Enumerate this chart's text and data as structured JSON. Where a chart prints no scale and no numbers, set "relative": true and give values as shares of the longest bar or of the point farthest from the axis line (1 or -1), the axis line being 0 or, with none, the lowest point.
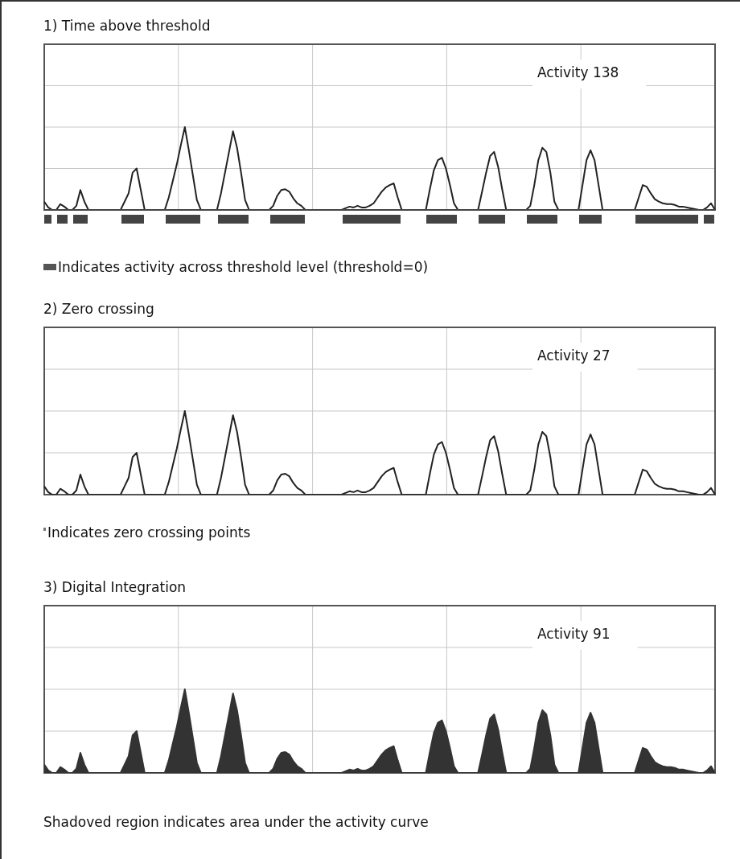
{
  "chart_data": [
    {
      "type": "line",
      "title": "1) Time above threshold",
      "relative": true,
      "grid": true,
      "marker": "none",
      "legend": false,
      "categories": [
        null,
        null,
        null,
        null,
        null,
        null,
        null,
        null,
        null,
        null,
        null,
        null,
        null,
        null,
        null,
        null,
        null,
        null,
        null,
        null,
        null,
        null,
        null,
        null,
        null,
        null,
        null,
        null,
        null,
        null,
        null,
        null,
        null,
        null,
        null,
        null,
        null,
        null,
        null,
        null,
        null,
        null,
        null,
        null,
        null,
        null,
        null,
        null,
        null,
        null,
        null,
        null,
        null,
        null,
        null,
        null,
        null,
        null,
        null,
        null,
        null,
        null,
        null,
        null,
        null,
        null,
        null,
        null,
        null,
        null,
        null,
        null,
        null,
        null,
        null,
        null,
        null,
        null,
        null,
        null,
        null,
        null,
        null,
        null,
        null,
        null,
        null,
        null,
        null,
        null,
        null,
        null,
        null,
        null,
        null,
        null,
        null,
        null,
        null,
        null,
        null,
        null,
        null,
        null,
        null,
        null,
        null,
        null,
        null,
        null,
        null,
        null,
        null,
        null,
        null,
        null,
        null,
        null,
        null,
        null,
        null,
        null,
        null,
        null,
        null,
        null,
        null,
        null,
        null,
        null,
        null,
        null,
        null,
        null,
        null,
        null,
        null,
        null,
        null,
        null,
        null,
        null,
        null,
        null,
        null,
        null,
        null,
        null,
        null,
        null,
        null,
        null,
        null,
        null,
        null,
        null,
        null,
        null,
        null,
        null,
        null,
        null,
        null,
        null,
        null,
        null,
        null,
        null
      ],
      "series": [
        {
          "color": "#222222",
          "values": [
            0.1,
            0.03,
            0,
            0,
            0.07,
            0.04,
            0,
            0,
            0.05,
            0.24,
            0.1,
            0,
            0,
            0,
            0,
            0,
            0,
            0,
            0,
            0,
            0.1,
            0.2,
            0.45,
            0.5,
            0.25,
            0,
            0,
            0,
            0,
            0,
            0,
            0.15,
            0.35,
            0.55,
            0.78,
            1,
            0.72,
            0.42,
            0.12,
            0,
            0,
            0,
            0,
            0,
            0.2,
            0.45,
            0.7,
            0.95,
            0.75,
            0.45,
            0.12,
            0,
            0,
            0,
            0,
            0,
            0,
            0.05,
            0.17,
            0.24,
            0.25,
            0.22,
            0.14,
            0.08,
            0.05,
            0,
            0,
            0,
            0,
            0,
            0,
            0,
            0,
            0,
            0,
            0.02,
            0.04,
            0.03,
            0.05,
            0.03,
            0.03,
            0.05,
            0.08,
            0.15,
            0.22,
            0.27,
            0.3,
            0.32,
            0.15,
            0,
            0,
            0,
            0,
            0,
            0,
            0,
            0.25,
            0.48,
            0.6,
            0.63,
            0.5,
            0.3,
            0.08,
            0,
            0,
            0,
            0,
            0,
            0,
            0.22,
            0.45,
            0.65,
            0.7,
            0.52,
            0.25,
            0,
            0,
            0,
            0,
            0,
            0,
            0.05,
            0.3,
            0.6,
            0.75,
            0.7,
            0.45,
            0.1,
            0,
            0,
            0,
            0,
            0,
            0,
            0.3,
            0.6,
            0.72,
            0.6,
            0.3,
            0,
            0,
            0,
            0,
            0,
            0,
            0,
            0,
            0,
            0.15,
            0.3,
            0.28,
            0.2,
            0.13,
            0.1,
            0.08,
            0.07,
            0.07,
            0.06,
            0.04,
            0.04,
            0.03,
            0.02,
            0.01,
            0,
            0,
            0.03,
            0.08,
            0
          ]
        }
      ],
      "ref_lines": [
        {
          "axis": "y",
          "value": 0,
          "color": "#444444"
        }
      ],
      "annotations": [
        "Activity 138",
        "Indicates activity across threshold level (threshold=0)"
      ]
    },
    {
      "type": "line",
      "title": "2) Zero crossing",
      "relative": true,
      "grid": true,
      "marker": "none",
      "legend": false,
      "categories": [
        null,
        null,
        null,
        null,
        null,
        null,
        null,
        null,
        null,
        null,
        null,
        null,
        null,
        null,
        null,
        null,
        null,
        null,
        null,
        null,
        null,
        null,
        null,
        null,
        null,
        null,
        null,
        null,
        null,
        null,
        null,
        null,
        null,
        null,
        null,
        null,
        null,
        null,
        null,
        null,
        null,
        null,
        null,
        null,
        null,
        null,
        null,
        null,
        null,
        null,
        null,
        null,
        null,
        null,
        null,
        null,
        null,
        null,
        null,
        null,
        null,
        null,
        null,
        null,
        null,
        null,
        null,
        null,
        null,
        null,
        null,
        null,
        null,
        null,
        null,
        null,
        null,
        null,
        null,
        null,
        null,
        null,
        null,
        null,
        null,
        null,
        null,
        null,
        null,
        null,
        null,
        null,
        null,
        null,
        null,
        null,
        null,
        null,
        null,
        null,
        null,
        null,
        null,
        null,
        null,
        null,
        null,
        null,
        null,
        null,
        null,
        null,
        null,
        null,
        null,
        null,
        null,
        null,
        null,
        null,
        null,
        null,
        null,
        null,
        null,
        null,
        null,
        null,
        null,
        null,
        null,
        null,
        null,
        null,
        null,
        null,
        null,
        null,
        null,
        null,
        null,
        null,
        null,
        null,
        null,
        null,
        null,
        null,
        null,
        null,
        null,
        null,
        null,
        null,
        null,
        null,
        null,
        null,
        null,
        null,
        null,
        null,
        null,
        null,
        null,
        null,
        null,
        null
      ],
      "series": [
        {
          "color": "#222222",
          "values": [
            0.1,
            0.03,
            0,
            0,
            0.07,
            0.04,
            0,
            0,
            0.05,
            0.24,
            0.1,
            0,
            0,
            0,
            0,
            0,
            0,
            0,
            0,
            0,
            0.1,
            0.2,
            0.45,
            0.5,
            0.25,
            0,
            0,
            0,
            0,
            0,
            0,
            0.15,
            0.35,
            0.55,
            0.78,
            1,
            0.72,
            0.42,
            0.12,
            0,
            0,
            0,
            0,
            0,
            0.2,
            0.45,
            0.7,
            0.95,
            0.75,
            0.45,
            0.12,
            0,
            0,
            0,
            0,
            0,
            0,
            0.05,
            0.17,
            0.24,
            0.25,
            0.22,
            0.14,
            0.08,
            0.05,
            0,
            0,
            0,
            0,
            0,
            0,
            0,
            0,
            0,
            0,
            0.02,
            0.04,
            0.03,
            0.05,
            0.03,
            0.03,
            0.05,
            0.08,
            0.15,
            0.22,
            0.27,
            0.3,
            0.32,
            0.15,
            0,
            0,
            0,
            0,
            0,
            0,
            0,
            0.25,
            0.48,
            0.6,
            0.63,
            0.5,
            0.3,
            0.08,
            0,
            0,
            0,
            0,
            0,
            0,
            0.22,
            0.45,
            0.65,
            0.7,
            0.52,
            0.25,
            0,
            0,
            0,
            0,
            0,
            0,
            0.05,
            0.3,
            0.6,
            0.75,
            0.7,
            0.45,
            0.1,
            0,
            0,
            0,
            0,
            0,
            0,
            0.3,
            0.6,
            0.72,
            0.6,
            0.3,
            0,
            0,
            0,
            0,
            0,
            0,
            0,
            0,
            0,
            0.15,
            0.3,
            0.28,
            0.2,
            0.13,
            0.1,
            0.08,
            0.07,
            0.07,
            0.06,
            0.04,
            0.04,
            0.03,
            0.02,
            0.01,
            0,
            0,
            0.03,
            0.08,
            0
          ]
        }
      ],
      "annotations": [
        "Activity 27",
        "Indicates zero crossing points"
      ]
    },
    {
      "type": "area",
      "title": "3) Digital Integration",
      "relative": true,
      "grid": true,
      "marker": "none",
      "legend": false,
      "categories": [
        null,
        null,
        null,
        null,
        null,
        null,
        null,
        null,
        null,
        null,
        null,
        null,
        null,
        null,
        null,
        null,
        null,
        null,
        null,
        null,
        null,
        null,
        null,
        null,
        null,
        null,
        null,
        null,
        null,
        null,
        null,
        null,
        null,
        null,
        null,
        null,
        null,
        null,
        null,
        null,
        null,
        null,
        null,
        null,
        null,
        null,
        null,
        null,
        null,
        null,
        null,
        null,
        null,
        null,
        null,
        null,
        null,
        null,
        null,
        null,
        null,
        null,
        null,
        null,
        null,
        null,
        null,
        null,
        null,
        null,
        null,
        null,
        null,
        null,
        null,
        null,
        null,
        null,
        null,
        null,
        null,
        null,
        null,
        null,
        null,
        null,
        null,
        null,
        null,
        null,
        null,
        null,
        null,
        null,
        null,
        null,
        null,
        null,
        null,
        null,
        null,
        null,
        null,
        null,
        null,
        null,
        null,
        null,
        null,
        null,
        null,
        null,
        null,
        null,
        null,
        null,
        null,
        null,
        null,
        null,
        null,
        null,
        null,
        null,
        null,
        null,
        null,
        null,
        null,
        null,
        null,
        null,
        null,
        null,
        null,
        null,
        null,
        null,
        null,
        null,
        null,
        null,
        null,
        null,
        null,
        null,
        null,
        null,
        null,
        null,
        null,
        null,
        null,
        null,
        null,
        null,
        null,
        null,
        null,
        null,
        null,
        null,
        null,
        null,
        null,
        null,
        null,
        null
      ],
      "series": [
        {
          "color": "#333333",
          "values": [
            0.1,
            0.03,
            0,
            0,
            0.07,
            0.04,
            0,
            0,
            0.05,
            0.24,
            0.1,
            0,
            0,
            0,
            0,
            0,
            0,
            0,
            0,
            0,
            0.1,
            0.2,
            0.45,
            0.5,
            0.25,
            0,
            0,
            0,
            0,
            0,
            0,
            0.15,
            0.35,
            0.55,
            0.78,
            1,
            0.72,
            0.42,
            0.12,
            0,
            0,
            0,
            0,
            0,
            0.2,
            0.45,
            0.7,
            0.95,
            0.75,
            0.45,
            0.12,
            0,
            0,
            0,
            0,
            0,
            0,
            0.05,
            0.17,
            0.24,
            0.25,
            0.22,
            0.14,
            0.08,
            0.05,
            0,
            0,
            0,
            0,
            0,
            0,
            0,
            0,
            0,
            0,
            0.02,
            0.04,
            0.03,
            0.05,
            0.03,
            0.03,
            0.05,
            0.08,
            0.15,
            0.22,
            0.27,
            0.3,
            0.32,
            0.15,
            0,
            0,
            0,
            0,
            0,
            0,
            0,
            0.25,
            0.48,
            0.6,
            0.63,
            0.5,
            0.3,
            0.08,
            0,
            0,
            0,
            0,
            0,
            0,
            0.22,
            0.45,
            0.65,
            0.7,
            0.52,
            0.25,
            0,
            0,
            0,
            0,
            0,
            0,
            0.05,
            0.3,
            0.6,
            0.75,
            0.7,
            0.45,
            0.1,
            0,
            0,
            0,
            0,
            0,
            0,
            0.3,
            0.6,
            0.72,
            0.6,
            0.3,
            0,
            0,
            0,
            0,
            0,
            0,
            0,
            0,
            0,
            0.15,
            0.3,
            0.28,
            0.2,
            0.13,
            0.1,
            0.08,
            0.07,
            0.07,
            0.06,
            0.04,
            0.04,
            0.03,
            0.02,
            0.01,
            0,
            0,
            0.03,
            0.08,
            0
          ]
        }
      ],
      "annotations": [
        "Activity 91",
        "Shadoved region indicates area under the activity curve"
      ]
    }
  ]
}
